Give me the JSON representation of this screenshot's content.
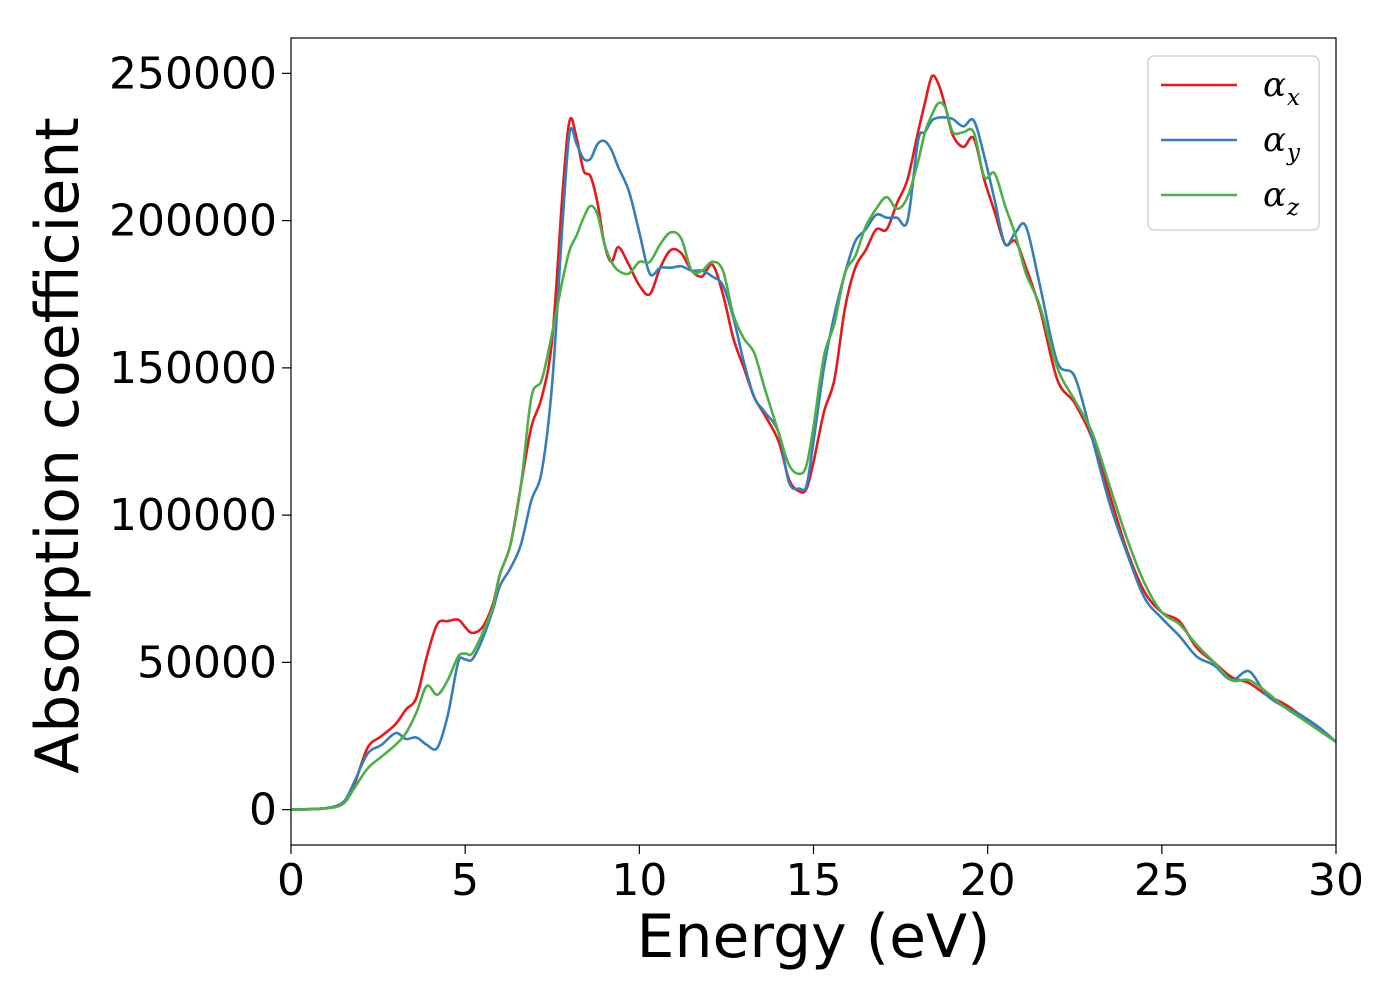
{
  "chart_data": {
    "type": "line",
    "title": "",
    "xlabel": "Energy (eV)",
    "ylabel": "Absorption coefficient",
    "xlim": [
      0,
      30
    ],
    "ylim": [
      -12000,
      262000
    ],
    "xticks": [
      0,
      5,
      10,
      15,
      20,
      25,
      30
    ],
    "yticks": [
      0,
      50000,
      100000,
      150000,
      200000,
      250000
    ],
    "xtick_labels": [
      "0",
      "5",
      "10",
      "15",
      "20",
      "25",
      "30"
    ],
    "ytick_labels": [
      "0",
      "50000",
      "100000",
      "150000",
      "200000",
      "250000"
    ],
    "grid": false,
    "legend_position": "top-right",
    "series": [
      {
        "name": "x",
        "legend_symbol": "α",
        "legend_subscript": "x",
        "color": "#e41a1c",
        "x": [
          0,
          1,
          1.5,
          1.8,
          2.2,
          2.6,
          3.0,
          3.3,
          3.6,
          3.9,
          4.2,
          4.5,
          4.8,
          5.0,
          5.2,
          5.5,
          5.8,
          6.0,
          6.3,
          6.6,
          6.9,
          7.2,
          7.5,
          7.8,
          8.0,
          8.2,
          8.4,
          8.6,
          8.8,
          9.0,
          9.2,
          9.4,
          9.7,
          10.0,
          10.3,
          10.6,
          10.9,
          11.2,
          11.5,
          11.8,
          12.1,
          12.4,
          12.7,
          13.0,
          13.3,
          13.6,
          14.0,
          14.3,
          14.6,
          14.8,
          15.0,
          15.3,
          15.6,
          15.9,
          16.2,
          16.5,
          16.8,
          17.1,
          17.4,
          17.7,
          18.0,
          18.2,
          18.4,
          18.6,
          18.8,
          19.0,
          19.3,
          19.6,
          19.9,
          20.2,
          20.5,
          20.8,
          21.1,
          21.5,
          22.0,
          22.5,
          23.0,
          23.5,
          24.0,
          24.5,
          25.0,
          25.5,
          26.0,
          26.5,
          27.0,
          27.5,
          28.0,
          28.5,
          29.0,
          29.5,
          30.0
        ],
        "y": [
          0,
          500,
          2500,
          8000,
          21000,
          25000,
          29000,
          34000,
          38000,
          52000,
          63000,
          64000,
          64500,
          62000,
          60000,
          62000,
          70000,
          80000,
          90000,
          110000,
          130000,
          140000,
          160000,
          210000,
          234000,
          228000,
          217000,
          215000,
          206000,
          192000,
          186000,
          191000,
          185000,
          178000,
          175000,
          184000,
          190000,
          189000,
          183000,
          181000,
          185000,
          175000,
          160000,
          150000,
          140000,
          134000,
          125000,
          112000,
          108000,
          109000,
          118000,
          135000,
          146000,
          170000,
          184000,
          190000,
          197000,
          197000,
          206000,
          214000,
          230000,
          240000,
          249000,
          246000,
          238000,
          229000,
          225000,
          228000,
          214000,
          203000,
          192000,
          193000,
          184000,
          170000,
          146000,
          138000,
          126000,
          107000,
          88000,
          74000,
          67000,
          64000,
          55000,
          50000,
          45000,
          43000,
          39000,
          36000,
          32000,
          28000,
          23000
        ]
      },
      {
        "name": "y",
        "legend_symbol": "α",
        "legend_subscript": "y",
        "color": "#377eb8",
        "x": [
          0,
          1,
          1.5,
          1.8,
          2.2,
          2.6,
          3.0,
          3.3,
          3.6,
          3.9,
          4.2,
          4.5,
          4.8,
          5.0,
          5.2,
          5.5,
          5.8,
          6.0,
          6.3,
          6.6,
          6.9,
          7.2,
          7.5,
          7.8,
          8.0,
          8.2,
          8.4,
          8.6,
          8.8,
          9.0,
          9.2,
          9.4,
          9.7,
          10.0,
          10.3,
          10.6,
          10.9,
          11.2,
          11.5,
          11.8,
          12.1,
          12.4,
          12.7,
          13.0,
          13.3,
          13.6,
          14.0,
          14.3,
          14.6,
          14.8,
          15.0,
          15.3,
          15.6,
          15.9,
          16.2,
          16.5,
          16.8,
          17.1,
          17.4,
          17.7,
          18.0,
          18.2,
          18.4,
          18.6,
          18.8,
          19.0,
          19.3,
          19.6,
          19.9,
          20.2,
          20.5,
          20.8,
          21.1,
          21.5,
          22.0,
          22.5,
          23.0,
          23.5,
          24.0,
          24.5,
          25.0,
          25.5,
          26.0,
          26.5,
          27.0,
          27.5,
          28.0,
          28.5,
          29.0,
          29.5,
          30.0
        ],
        "y": [
          0,
          500,
          2500,
          9000,
          19000,
          22000,
          26000,
          24000,
          24500,
          22000,
          21000,
          32000,
          50000,
          51000,
          51000,
          58000,
          68000,
          76000,
          82000,
          90000,
          105000,
          115000,
          145000,
          200000,
          230000,
          226000,
          221000,
          221000,
          226000,
          227000,
          224000,
          218000,
          210000,
          196000,
          182000,
          184000,
          184000,
          184500,
          183000,
          183000,
          181000,
          178000,
          167000,
          152000,
          140000,
          135000,
          128000,
          111000,
          109000,
          110000,
          125000,
          150000,
          168000,
          182000,
          193000,
          197000,
          202000,
          201000,
          201000,
          200000,
          227000,
          230000,
          234000,
          235000,
          235000,
          234500,
          232000,
          234000,
          222000,
          207000,
          192000,
          196000,
          198000,
          178000,
          152000,
          147000,
          126000,
          104000,
          87000,
          72000,
          65000,
          59000,
          52000,
          49000,
          44000,
          47000,
          39000,
          35000,
          32000,
          28000,
          23000
        ]
      },
      {
        "name": "z",
        "legend_symbol": "α",
        "legend_subscript": "z",
        "color": "#4daf4a",
        "x": [
          0,
          1,
          1.5,
          1.8,
          2.2,
          2.6,
          3.0,
          3.3,
          3.6,
          3.9,
          4.2,
          4.5,
          4.8,
          5.0,
          5.2,
          5.5,
          5.8,
          6.0,
          6.3,
          6.6,
          6.9,
          7.2,
          7.5,
          7.8,
          8.0,
          8.2,
          8.4,
          8.6,
          8.8,
          9.0,
          9.2,
          9.4,
          9.7,
          10.0,
          10.3,
          10.6,
          10.9,
          11.2,
          11.5,
          11.8,
          12.1,
          12.4,
          12.7,
          13.0,
          13.3,
          13.6,
          14.0,
          14.3,
          14.6,
          14.8,
          15.0,
          15.3,
          15.6,
          15.9,
          16.2,
          16.5,
          16.8,
          17.1,
          17.4,
          17.7,
          18.0,
          18.2,
          18.4,
          18.6,
          18.8,
          19.0,
          19.3,
          19.6,
          19.9,
          20.2,
          20.5,
          20.8,
          21.1,
          21.5,
          22.0,
          22.5,
          23.0,
          23.5,
          24.0,
          24.5,
          25.0,
          25.5,
          26.0,
          26.5,
          27.0,
          27.5,
          28.0,
          28.5,
          29.0,
          29.5,
          30.0
        ],
        "y": [
          0,
          400,
          2000,
          7000,
          14000,
          18000,
          22000,
          26000,
          33000,
          42000,
          39000,
          44000,
          52000,
          53000,
          53000,
          60000,
          69000,
          80000,
          90000,
          110000,
          140000,
          146000,
          162000,
          180000,
          190000,
          195000,
          201000,
          205000,
          202000,
          192000,
          186000,
          183000,
          182000,
          186000,
          186000,
          192000,
          196000,
          194000,
          183000,
          183000,
          186000,
          183000,
          168000,
          160000,
          155000,
          143000,
          128000,
          117000,
          114000,
          117000,
          130000,
          154000,
          165000,
          182000,
          188000,
          198000,
          204000,
          208000,
          204000,
          208000,
          220000,
          230000,
          236000,
          240000,
          238000,
          230000,
          230000,
          230000,
          215000,
          216000,
          205000,
          195000,
          182000,
          171000,
          150000,
          139000,
          128000,
          110000,
          92000,
          77000,
          67000,
          63000,
          56000,
          50000,
          44000,
          44000,
          40000,
          35000,
          31000,
          27000,
          23000
        ]
      }
    ]
  }
}
